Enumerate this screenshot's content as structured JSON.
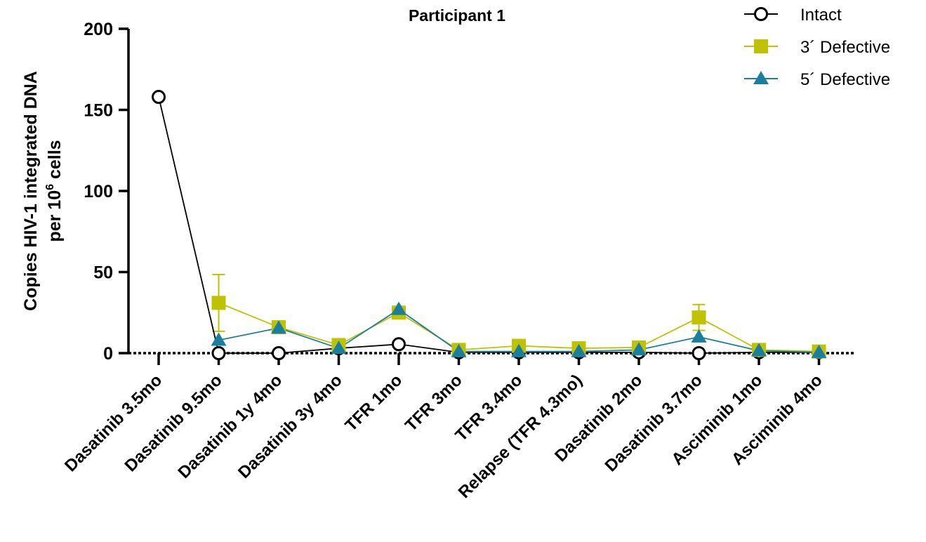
{
  "chart_data": {
    "type": "line",
    "title": "Participant 1",
    "ylabel_line1": "Copies HIV-1 integrated DNA",
    "ylabel_line2_prefix": "per 10",
    "ylabel_line2_sup": "6",
    "ylabel_line2_suffix": " cells",
    "xlabel": "",
    "ylim": [
      0,
      200
    ],
    "yticks": [
      0,
      50,
      100,
      150,
      200
    ],
    "ytick_labels": [
      "0",
      "50",
      "100",
      "150",
      "200"
    ],
    "grid": false,
    "legend_position": "top-right",
    "categories": [
      "Dasatinib 3.5mo",
      "Dasatinib 9.5mo",
      "Dasatinib 1y 4mo",
      "Dasatinib 3y 4mo",
      "TFR 1mo",
      "TFR 3mo",
      "TFR 3.4mo",
      "Relapse (TFR 4.3mo)",
      "Dasatinib 2mo",
      "Dasatinib 3.7mo",
      "Asciminib 1mo",
      "Asciminib 4mo"
    ],
    "series": [
      {
        "name": "Intact",
        "marker": "circle-open",
        "color": "#000000",
        "values": [
          158,
          0,
          0,
          3,
          5.5,
          0.5,
          0.5,
          0.5,
          0.5,
          0,
          0.5,
          0.5
        ]
      },
      {
        "name": "3´ Defective",
        "marker": "square",
        "color": "#bfc200",
        "values": [
          null,
          31,
          16,
          5,
          25,
          2,
          4.5,
          3,
          3.5,
          22,
          2,
          1
        ],
        "error_upper": [
          null,
          17.5,
          0,
          0,
          0,
          0,
          0,
          0,
          0,
          8,
          0,
          0
        ],
        "error_lower": [
          null,
          17.5,
          0,
          0,
          0,
          0,
          0,
          0,
          0,
          8,
          0,
          0
        ]
      },
      {
        "name": "5´ Defective",
        "marker": "triangle",
        "color": "#1a7f9e",
        "values": [
          null,
          8,
          15.5,
          3,
          27,
          1,
          1,
          1,
          2,
          10,
          1.5,
          0.5
        ]
      }
    ]
  }
}
